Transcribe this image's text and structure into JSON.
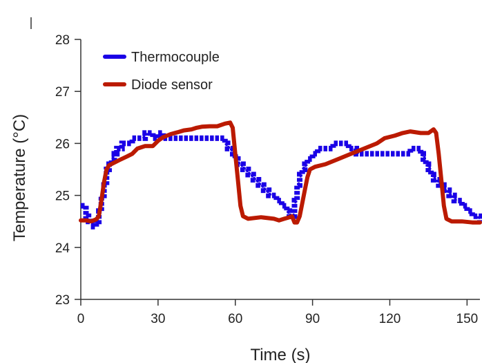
{
  "chart_data": {
    "type": "line",
    "xlabel": "Time (s)",
    "ylabel": "Temperature (°C)",
    "xlim": [
      0,
      155
    ],
    "ylim": [
      23,
      28
    ],
    "xticks": [
      0,
      30,
      60,
      90,
      120,
      150
    ],
    "yticks": [
      23,
      24,
      25,
      26,
      27,
      28
    ],
    "grid": false,
    "legend_position": "top-left",
    "series": [
      {
        "name": "Thermocouple",
        "color": "#1a00e6",
        "style": "step",
        "points": [
          [
            0,
            24.8
          ],
          [
            2,
            24.6
          ],
          [
            3,
            24.5
          ],
          [
            4,
            24.5
          ],
          [
            5,
            24.4
          ],
          [
            6,
            24.5
          ],
          [
            7,
            24.7
          ],
          [
            8,
            25.0
          ],
          [
            9,
            25.2
          ],
          [
            10,
            25.5
          ],
          [
            11,
            25.6
          ],
          [
            12,
            25.7
          ],
          [
            13,
            25.8
          ],
          [
            14,
            25.9
          ],
          [
            16,
            26.0
          ],
          [
            20,
            26.1
          ],
          [
            25,
            26.2
          ],
          [
            27,
            26.2
          ],
          [
            28,
            26.1
          ],
          [
            30,
            26.2
          ],
          [
            32,
            26.1
          ],
          [
            55,
            26.1
          ],
          [
            56,
            26.0
          ],
          [
            57,
            25.9
          ],
          [
            59,
            25.8
          ],
          [
            60,
            25.7
          ],
          [
            61,
            25.6
          ],
          [
            63,
            25.5
          ],
          [
            65,
            25.4
          ],
          [
            67,
            25.3
          ],
          [
            69,
            25.2
          ],
          [
            71,
            25.1
          ],
          [
            73,
            25.0
          ],
          [
            76,
            24.9
          ],
          [
            78,
            24.8
          ],
          [
            80,
            24.7
          ],
          [
            81,
            24.6
          ],
          [
            82,
            24.6
          ],
          [
            83,
            24.9
          ],
          [
            84,
            25.2
          ],
          [
            85,
            25.4
          ],
          [
            86,
            25.5
          ],
          [
            87,
            25.6
          ],
          [
            88,
            25.7
          ],
          [
            90,
            25.8
          ],
          [
            92,
            25.9
          ],
          [
            98,
            26.0
          ],
          [
            103,
            26.0
          ],
          [
            104,
            25.9
          ],
          [
            106,
            25.9
          ],
          [
            107,
            25.8
          ],
          [
            126,
            25.8
          ],
          [
            128,
            25.9
          ],
          [
            131,
            25.9
          ],
          [
            132,
            25.8
          ],
          [
            133,
            25.7
          ],
          [
            134,
            25.6
          ],
          [
            135,
            25.5
          ],
          [
            136,
            25.4
          ],
          [
            137,
            25.3
          ],
          [
            139,
            25.2
          ],
          [
            141,
            25.1
          ],
          [
            143,
            25.0
          ],
          [
            145,
            24.9
          ],
          [
            148,
            24.8
          ],
          [
            150,
            24.7
          ],
          [
            152,
            24.6
          ],
          [
            155,
            24.5
          ]
        ]
      },
      {
        "name": "Diode sensor",
        "color": "#bb1a00",
        "style": "line",
        "points": [
          [
            0,
            24.52
          ],
          [
            2,
            24.52
          ],
          [
            4,
            24.5
          ],
          [
            6,
            24.54
          ],
          [
            7,
            24.6
          ],
          [
            8,
            24.9
          ],
          [
            9,
            25.25
          ],
          [
            10,
            25.5
          ],
          [
            11,
            25.58
          ],
          [
            13,
            25.63
          ],
          [
            15,
            25.68
          ],
          [
            18,
            25.75
          ],
          [
            20,
            25.8
          ],
          [
            22,
            25.9
          ],
          [
            25,
            25.95
          ],
          [
            28,
            25.95
          ],
          [
            30,
            26.05
          ],
          [
            32,
            26.12
          ],
          [
            35,
            26.18
          ],
          [
            38,
            26.22
          ],
          [
            40,
            26.25
          ],
          [
            43,
            26.27
          ],
          [
            45,
            26.3
          ],
          [
            47,
            26.32
          ],
          [
            50,
            26.33
          ],
          [
            53,
            26.33
          ],
          [
            56,
            26.38
          ],
          [
            58,
            26.4
          ],
          [
            59,
            26.3
          ],
          [
            60,
            25.8
          ],
          [
            61,
            25.3
          ],
          [
            62,
            24.8
          ],
          [
            63,
            24.6
          ],
          [
            65,
            24.55
          ],
          [
            70,
            24.58
          ],
          [
            75,
            24.55
          ],
          [
            77,
            24.52
          ],
          [
            79,
            24.55
          ],
          [
            81,
            24.58
          ],
          [
            82,
            24.6
          ],
          [
            83,
            24.48
          ],
          [
            84,
            24.48
          ],
          [
            85,
            24.6
          ],
          [
            86,
            24.85
          ],
          [
            87,
            25.1
          ],
          [
            88,
            25.35
          ],
          [
            89,
            25.5
          ],
          [
            91,
            25.55
          ],
          [
            95,
            25.6
          ],
          [
            100,
            25.7
          ],
          [
            105,
            25.8
          ],
          [
            110,
            25.9
          ],
          [
            115,
            26.0
          ],
          [
            118,
            26.1
          ],
          [
            122,
            26.15
          ],
          [
            125,
            26.2
          ],
          [
            128,
            26.23
          ],
          [
            132,
            26.2
          ],
          [
            135,
            26.2
          ],
          [
            137,
            26.27
          ],
          [
            138,
            26.2
          ],
          [
            139,
            25.8
          ],
          [
            140,
            25.3
          ],
          [
            141,
            24.8
          ],
          [
            142,
            24.55
          ],
          [
            144,
            24.5
          ],
          [
            148,
            24.5
          ],
          [
            152,
            24.48
          ],
          [
            155,
            24.48
          ]
        ]
      }
    ]
  }
}
